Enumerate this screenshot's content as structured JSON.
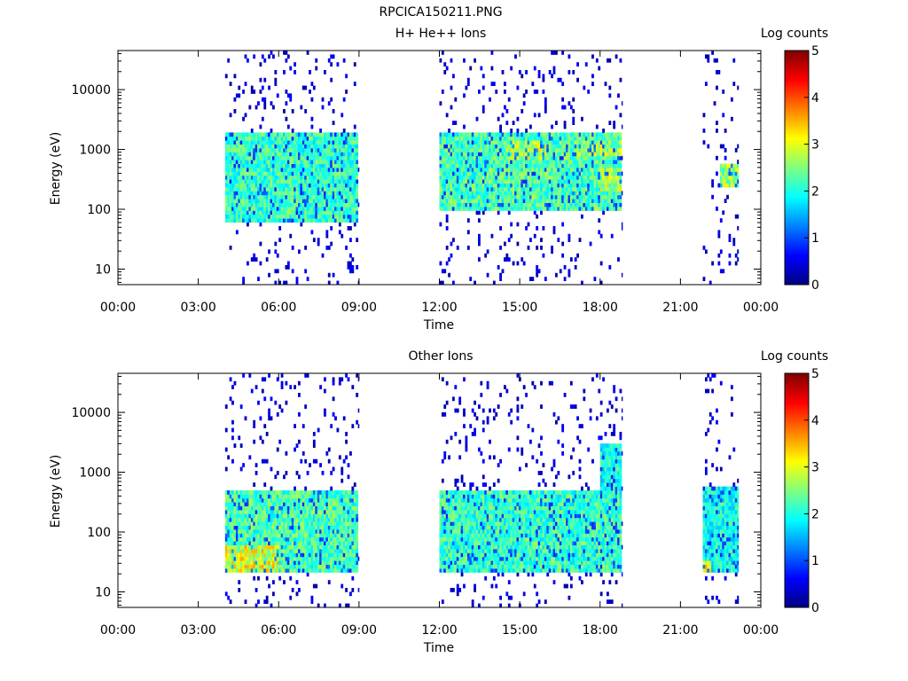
{
  "figure_title": "RPCICA150211.PNG",
  "colors": {
    "background": "#ffffff",
    "axis": "#000000"
  },
  "colormap": "jet",
  "chart_data": [
    {
      "type": "heatmap",
      "title": "H+ He++ Ions",
      "xlabel": "Time",
      "ylabel": "Energy (eV)",
      "yscale": "log",
      "xlim": [
        "00:00",
        "24:00"
      ],
      "ylim": [
        5.5,
        45000
      ],
      "x_ticks": [
        "00:00",
        "03:00",
        "06:00",
        "09:00",
        "12:00",
        "15:00",
        "18:00",
        "21:00",
        "00:00"
      ],
      "y_ticks": [
        10,
        100,
        1000,
        10000
      ],
      "colorbar": {
        "label": "Log counts",
        "range": [
          0,
          5
        ],
        "ticks": [
          0,
          1,
          2,
          3,
          4,
          5
        ]
      },
      "legend": "none",
      "data_intervals": [
        {
          "start": "04:00",
          "end": "09:00"
        },
        {
          "start": "12:00",
          "end": "18:50"
        },
        {
          "start": "21:50",
          "end": "23:10"
        }
      ],
      "features": [
        {
          "time_start": "04:00",
          "time_end": "09:00",
          "energy_min": 60,
          "energy_max": 1800,
          "log_counts": 2.2,
          "description": "main band"
        },
        {
          "time_start": "12:00",
          "time_end": "18:50",
          "energy_min": 100,
          "energy_max": 1800,
          "log_counts": 2.3,
          "description": "main band"
        },
        {
          "time_start": "14:30",
          "time_end": "16:00",
          "energy_min": 700,
          "energy_max": 1500,
          "log_counts": 2.8,
          "description": "intense band"
        },
        {
          "time_start": "17:00",
          "time_end": "18:50",
          "energy_min": 800,
          "energy_max": 1400,
          "log_counts": 2.7,
          "description": "intense band"
        },
        {
          "time_start": "18:00",
          "time_end": "18:50",
          "energy_min": 200,
          "energy_max": 500,
          "log_counts": 2.8,
          "description": "intense band"
        },
        {
          "time_start": "22:30",
          "time_end": "23:10",
          "energy_min": 250,
          "energy_max": 600,
          "log_counts": 2.7,
          "description": "intense band"
        }
      ]
    },
    {
      "type": "heatmap",
      "title": "Other Ions",
      "xlabel": "Time",
      "ylabel": "Energy (eV)",
      "yscale": "log",
      "xlim": [
        "00:00",
        "24:00"
      ],
      "ylim": [
        5.5,
        45000
      ],
      "x_ticks": [
        "00:00",
        "03:00",
        "06:00",
        "09:00",
        "12:00",
        "15:00",
        "18:00",
        "21:00",
        "00:00"
      ],
      "y_ticks": [
        10,
        100,
        1000,
        10000
      ],
      "colorbar": {
        "label": "Log counts",
        "range": [
          0,
          5
        ],
        "ticks": [
          0,
          1,
          2,
          3,
          4,
          5
        ]
      },
      "legend": "none",
      "data_intervals": [
        {
          "start": "04:00",
          "end": "09:00"
        },
        {
          "start": "12:00",
          "end": "18:50"
        },
        {
          "start": "21:50",
          "end": "23:10"
        }
      ],
      "features": [
        {
          "time_start": "04:00",
          "time_end": "09:00",
          "energy_min": 20,
          "energy_max": 500,
          "log_counts": 2.3,
          "description": "main band"
        },
        {
          "time_start": "04:00",
          "time_end": "06:00",
          "energy_min": 20,
          "energy_max": 60,
          "log_counts": 3.0,
          "description": "intense band"
        },
        {
          "time_start": "12:00",
          "time_end": "18:50",
          "energy_min": 20,
          "energy_max": 500,
          "log_counts": 2.2,
          "description": "main band"
        },
        {
          "time_start": "18:00",
          "time_end": "18:50",
          "energy_min": 200,
          "energy_max": 3000,
          "log_counts": 2.0,
          "description": "upward extension"
        },
        {
          "time_start": "21:50",
          "time_end": "23:10",
          "energy_min": 20,
          "energy_max": 600,
          "log_counts": 2.0,
          "description": "main band"
        },
        {
          "time_start": "21:50",
          "time_end": "22:10",
          "energy_min": 20,
          "energy_max": 35,
          "log_counts": 3.0,
          "description": "intense band"
        }
      ]
    }
  ]
}
